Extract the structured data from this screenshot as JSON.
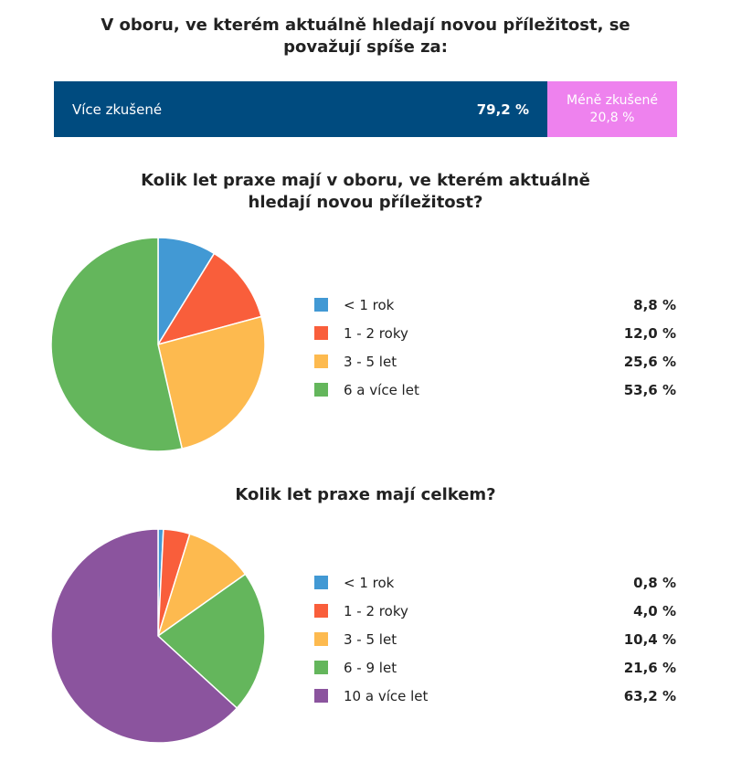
{
  "chart_data": [
    {
      "type": "bar",
      "orientation": "stacked-horizontal",
      "title": "V oboru, ve kterém aktuálně hledají novou příležitost, se považují spíše za:",
      "categories": [
        "Více zkušené",
        "Méně zkušené"
      ],
      "values": [
        79.2,
        20.8
      ],
      "value_labels": [
        "79,2 %",
        "20,8 %"
      ],
      "colors": [
        "#004b7f",
        "#ee82ee"
      ],
      "legend": "none"
    },
    {
      "type": "pie",
      "title": "Kolik let praxe mají v oboru, ve kterém aktuálně hledají novou příležitost?",
      "categories": [
        "< 1 rok",
        "1 - 2 roky",
        "3 - 5 let",
        "6 a více let"
      ],
      "values": [
        8.8,
        12.0,
        25.6,
        53.6
      ],
      "value_labels": [
        "8,8 %",
        "12,0 %",
        "25,6 %",
        "53,6 %"
      ],
      "colors": [
        "#4299d4",
        "#f95e3b",
        "#fdba4f",
        "#64b65c"
      ],
      "legend": "right"
    },
    {
      "type": "pie",
      "title": "Kolik let praxe mají celkem?",
      "categories": [
        "< 1 rok",
        "1 - 2 roky",
        "3 - 5 let",
        "6 - 9 let",
        "10 a více let"
      ],
      "values": [
        0.8,
        4.0,
        10.4,
        21.6,
        63.2
      ],
      "value_labels": [
        "0,8 %",
        "4,0 %",
        "10,4 %",
        "21,6 %",
        "63,2 %"
      ],
      "colors": [
        "#4299d4",
        "#f95e3b",
        "#fdba4f",
        "#64b65c",
        "#8b549e"
      ],
      "legend": "right"
    }
  ]
}
